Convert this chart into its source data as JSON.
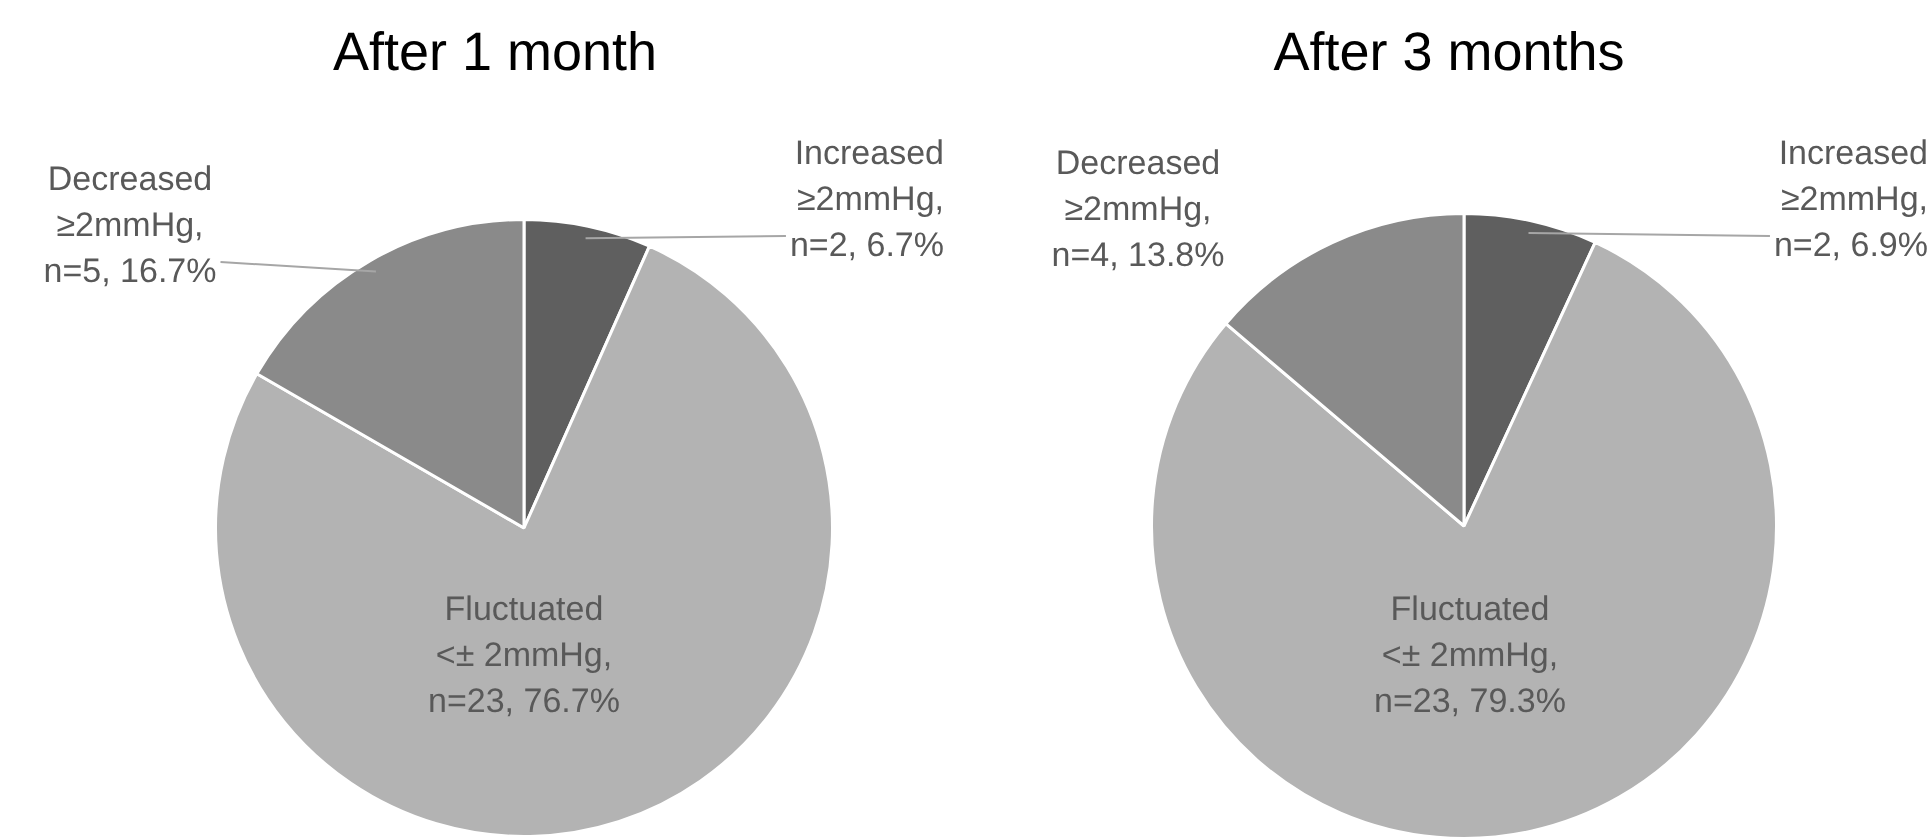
{
  "chart_data": [
    {
      "type": "pie",
      "title": "After 1 month",
      "categories": [
        "Increased ≥2mmHg, n=2, 6.7%",
        "Fluctuated <± 2mmHg, n=23, 76.7%",
        "Decreased ≥2mmHg, n=5, 16.7%"
      ],
      "values": [
        2,
        23,
        5
      ],
      "colors": [
        "#5f5f5f",
        "#b3b3b3",
        "#8a8a8a"
      ]
    },
    {
      "type": "pie",
      "title": "After 3 months",
      "categories": [
        "Increased ≥2mmHg, n=2, 6.9%",
        "Fluctuated <± 2mmHg, n=23, 79.3%",
        "Decreased ≥2mmHg, n=4, 13.8%"
      ],
      "values": [
        2,
        23,
        4
      ],
      "colors": [
        "#5f5f5f",
        "#b3b3b3",
        "#8a8a8a"
      ]
    }
  ]
}
